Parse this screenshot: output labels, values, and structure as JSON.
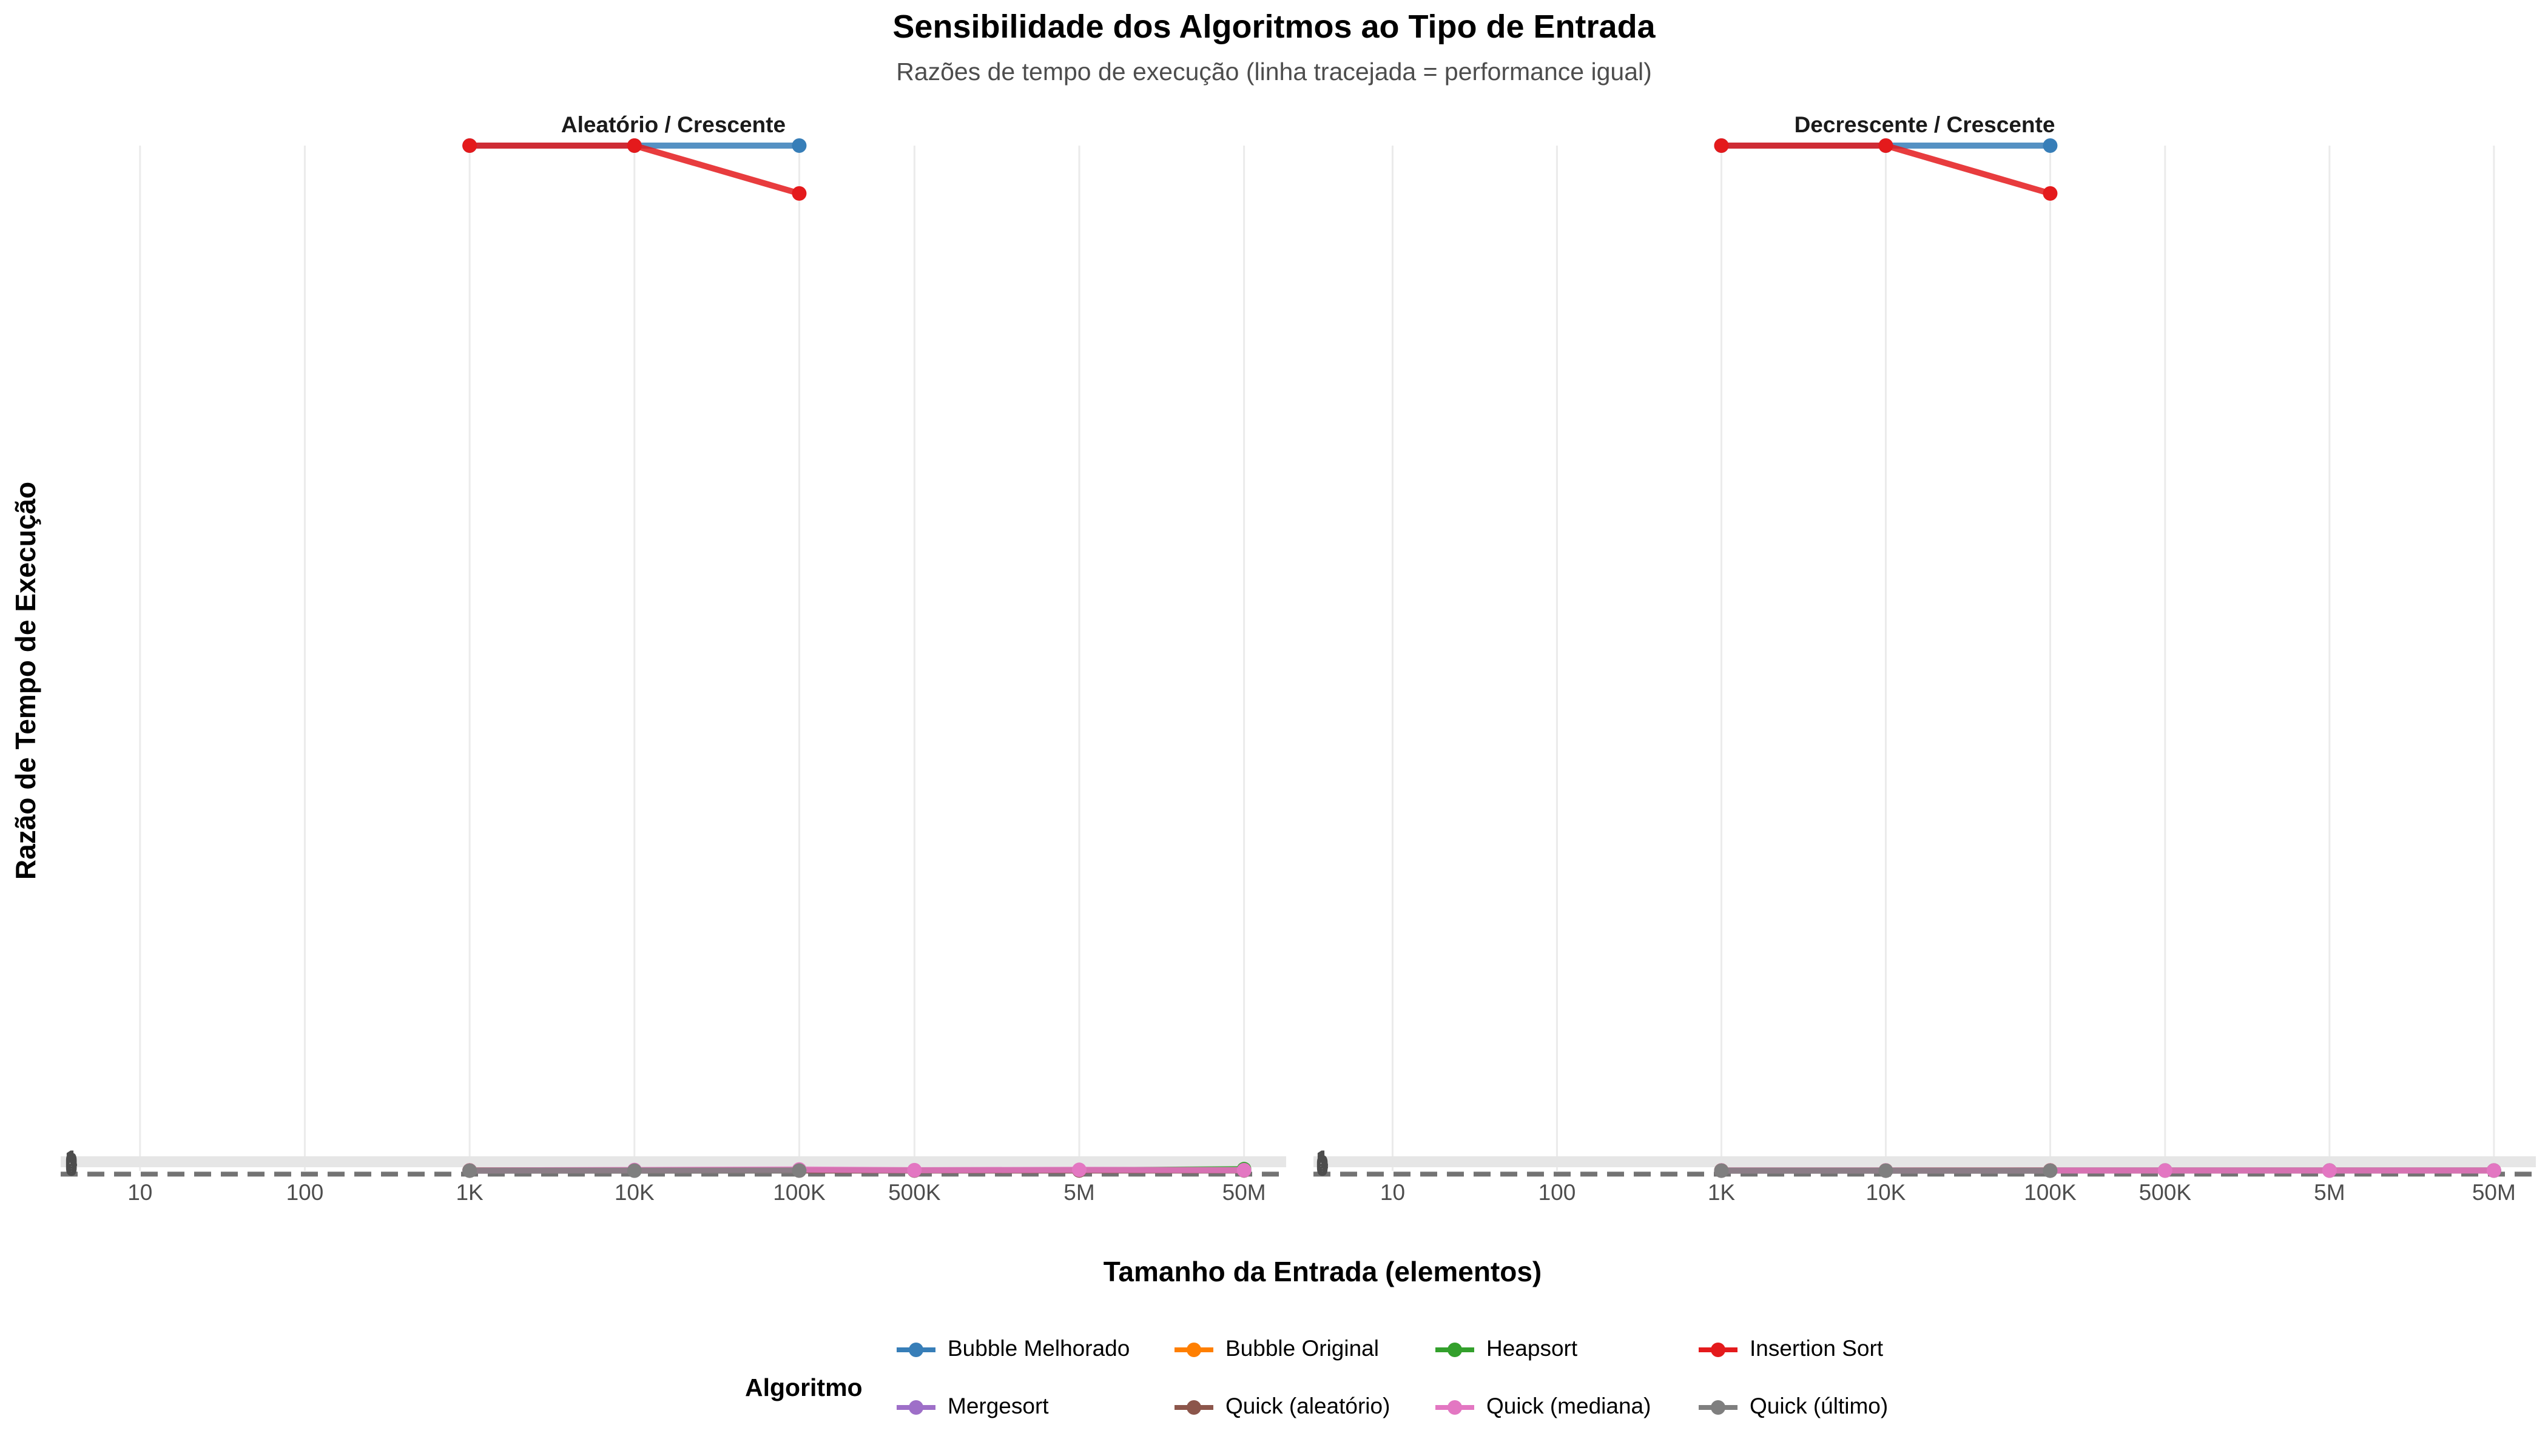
{
  "chart_data": {
    "type": "line",
    "title": "Sensibilidade dos Algoritmos ao Tipo de Entrada",
    "subtitle": "Razões de tempo de execução (linha tracejada = performance igual)",
    "xlabel": "Tamanho da Entrada (elementos)",
    "ylabel": "Razão de Tempo de Execução",
    "x_scale": "log",
    "x_ticks": [
      {
        "value": 10,
        "label": "10"
      },
      {
        "value": 100,
        "label": "100"
      },
      {
        "value": 1000,
        "label": "1K"
      },
      {
        "value": 10000,
        "label": "10K"
      },
      {
        "value": 100000,
        "label": "100K"
      },
      {
        "value": 500000,
        "label": "500K"
      },
      {
        "value": 5000000,
        "label": "5M"
      },
      {
        "value": 50000000,
        "label": "50M"
      }
    ],
    "reference_line": {
      "y": 1,
      "style": "dashed"
    },
    "grid": true,
    "legend": {
      "title": "Algoritmo",
      "position": "bottom"
    },
    "series_styles": [
      {
        "name": "Bubble Melhorado",
        "color": "#377eb8"
      },
      {
        "name": "Bubble Original",
        "color": "#ff7f00"
      },
      {
        "name": "Heapsort",
        "color": "#33a02c"
      },
      {
        "name": "Insertion Sort",
        "color": "#e41a1c"
      },
      {
        "name": "Mergesort",
        "color": "#9e6fc8"
      },
      {
        "name": "Quick (aleatório)",
        "color": "#8c564b"
      },
      {
        "name": "Quick (mediana)",
        "color": "#e377c2"
      },
      {
        "name": "Quick (último)",
        "color": "#7f7f7f"
      }
    ],
    "panels": [
      {
        "title": "Aleatório / Crescente",
        "y_tick_labels": [
          "1",
          "0",
          "0",
          "0",
          "0"
        ],
        "series": [
          {
            "name": "Bubble Melhorado",
            "points": [
              [
                1000,
                3000
              ],
              [
                10000,
                3000
              ],
              [
                100000,
                3000
              ]
            ]
          },
          {
            "name": "Insertion Sort",
            "points": [
              [
                1000,
                3000
              ],
              [
                10000,
                3000
              ],
              [
                100000,
                2860
              ]
            ]
          },
          {
            "name": "Bubble Original",
            "points": [
              [
                1000,
                1.3
              ],
              [
                10000,
                1.4
              ],
              [
                100000,
                1.6
              ]
            ]
          },
          {
            "name": "Heapsort",
            "points": [
              [
                1000,
                1.1
              ],
              [
                10000,
                1.2
              ],
              [
                100000,
                1.3
              ],
              [
                500000,
                1.3
              ],
              [
                5000000,
                1.5
              ],
              [
                50000000,
                5
              ]
            ]
          },
          {
            "name": "Mergesort",
            "points": [
              [
                1000,
                1.0
              ],
              [
                10000,
                1.1
              ],
              [
                100000,
                1.2
              ],
              [
                500000,
                1.2
              ],
              [
                5000000,
                1.3
              ],
              [
                50000000,
                1.4
              ]
            ]
          },
          {
            "name": "Quick (aleatório)",
            "points": [
              [
                1000,
                1.0
              ],
              [
                10000,
                1.0
              ],
              [
                100000,
                1.1
              ],
              [
                500000,
                1.1
              ],
              [
                5000000,
                1.2
              ],
              [
                50000000,
                1.2
              ]
            ]
          },
          {
            "name": "Quick (mediana)",
            "points": [
              [
                1000,
                1.2
              ],
              [
                10000,
                2.5
              ],
              [
                100000,
                4.0
              ],
              [
                500000,
                2.0
              ],
              [
                5000000,
                3.0
              ],
              [
                50000000,
                2.0
              ]
            ]
          },
          {
            "name": "Quick (último)",
            "points": [
              [
                1000,
                0.5
              ],
              [
                10000,
                0.6
              ],
              [
                100000,
                0.8
              ]
            ]
          }
        ]
      },
      {
        "title": "Decrescente / Crescente",
        "y_tick_labels": [
          "1",
          "1",
          "0",
          "0",
          "0"
        ],
        "series": [
          {
            "name": "Bubble Melhorado",
            "points": [
              [
                1000,
                3000
              ],
              [
                10000,
                3000
              ],
              [
                100000,
                3000
              ]
            ]
          },
          {
            "name": "Insertion Sort",
            "points": [
              [
                1000,
                3000
              ],
              [
                10000,
                3000
              ],
              [
                100000,
                2860
              ]
            ]
          },
          {
            "name": "Bubble Original",
            "points": [
              [
                1000,
                1.1
              ],
              [
                10000,
                1.2
              ],
              [
                100000,
                1.3
              ]
            ]
          },
          {
            "name": "Heapsort",
            "points": [
              [
                1000,
                1.0
              ],
              [
                10000,
                1.0
              ],
              [
                100000,
                1.0
              ],
              [
                500000,
                1.0
              ],
              [
                5000000,
                1.0
              ],
              [
                50000000,
                1.0
              ]
            ]
          },
          {
            "name": "Mergesort",
            "points": [
              [
                1000,
                1.0
              ],
              [
                10000,
                1.0
              ],
              [
                100000,
                1.0
              ],
              [
                500000,
                1.0
              ],
              [
                5000000,
                1.0
              ],
              [
                50000000,
                1.0
              ]
            ]
          },
          {
            "name": "Quick (aleatório)",
            "points": [
              [
                1000,
                0.9
              ],
              [
                10000,
                0.9
              ],
              [
                100000,
                1.0
              ],
              [
                500000,
                1.0
              ],
              [
                5000000,
                1.0
              ],
              [
                50000000,
                1.0
              ]
            ]
          },
          {
            "name": "Quick (mediana)",
            "points": [
              [
                1000,
                1.0
              ],
              [
                10000,
                1.0
              ],
              [
                100000,
                1.0
              ],
              [
                500000,
                1.0
              ],
              [
                5000000,
                1.0
              ],
              [
                50000000,
                1.0
              ]
            ]
          },
          {
            "name": "Quick (último)",
            "points": [
              [
                1000,
                0.5
              ],
              [
                10000,
                0.5
              ],
              [
                100000,
                0.5
              ]
            ]
          }
        ]
      }
    ]
  }
}
